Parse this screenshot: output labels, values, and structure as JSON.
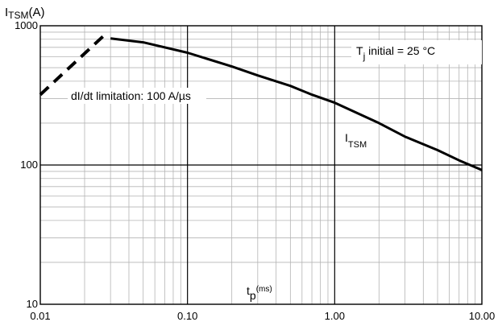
{
  "chart_data": {
    "type": "line",
    "title": "",
    "ylabel_main": "I",
    "ylabel_sub": "TSM",
    "ylabel_unit": "(A)",
    "xlabel_main": "t",
    "xlabel_sub": "p",
    "xlabel_unit": "(ms)",
    "x_scale": "log",
    "y_scale": "log",
    "xlim": [
      0.01,
      10
    ],
    "ylim": [
      10,
      1000
    ],
    "grid": true,
    "x_tick_labels": [
      "0.01",
      "0.10",
      "1.00",
      "10.00"
    ],
    "x_tick_values": [
      0.01,
      0.1,
      1,
      10
    ],
    "y_tick_labels": [
      "10",
      "100",
      "1000"
    ],
    "y_tick_values": [
      10,
      100,
      1000
    ],
    "series": [
      {
        "name": "I",
        "name_sub": "TSM",
        "style": "solid",
        "x": [
          0.03,
          0.05,
          0.1,
          0.2,
          0.3,
          0.5,
          0.7,
          1.0,
          2.0,
          3.0,
          5.0,
          7.0,
          10.0
        ],
        "y": [
          810,
          760,
          640,
          510,
          440,
          370,
          320,
          280,
          200,
          160,
          128,
          108,
          92
        ]
      },
      {
        "name": "dI/dt limitation: 100 A/µs",
        "style": "dashed",
        "x": [
          0.01,
          0.028
        ],
        "y": [
          320,
          880
        ]
      }
    ],
    "annotations": {
      "tj_main": "T",
      "tj_sub": "j",
      "tj_rest": " initial = 25 °C",
      "didt_label": "dI/dt limitation: 100 A/µs"
    },
    "colors": {
      "curve": "#000000",
      "major_grid": "#000000",
      "minor_grid": "#b4b4b4"
    }
  }
}
